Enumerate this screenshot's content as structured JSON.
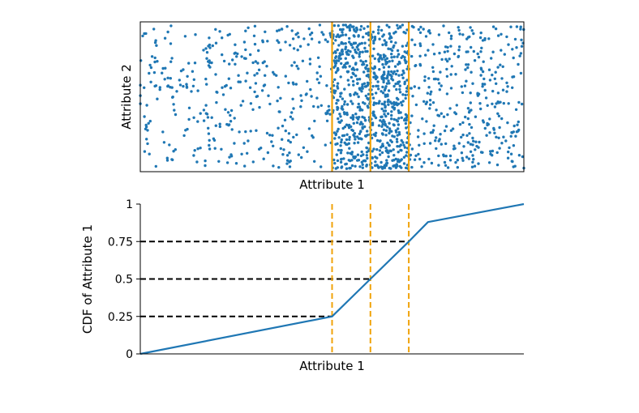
{
  "chart_data": [
    {
      "type": "scatter",
      "xlabel": "Attribute 1",
      "ylabel": "Attribute 2",
      "xlim": [
        0,
        1
      ],
      "ylim": [
        0,
        1
      ],
      "axis_ticks": "none",
      "grid": false,
      "marker_color": "#1f77b4",
      "density_profile": {
        "breaks": [
          0,
          0.5,
          0.6,
          0.7,
          1
        ],
        "cdf_at_breaks": [
          0,
          0.25,
          0.5,
          0.75,
          1
        ],
        "point_count": 1500
      },
      "vertical_lines": [
        {
          "x": 0.5,
          "color": "#f0a30a",
          "style": "solid"
        },
        {
          "x": 0.6,
          "color": "#f0a30a",
          "style": "solid"
        },
        {
          "x": 0.7,
          "color": "#f0a30a",
          "style": "solid"
        }
      ]
    },
    {
      "type": "line",
      "xlabel": "Attribute 1",
      "ylabel": "CDF of Attribute 1",
      "xlim": [
        0,
        1
      ],
      "ylim": [
        0,
        1
      ],
      "grid": false,
      "y_ticks": [
        {
          "value": 0,
          "label": "0"
        },
        {
          "value": 0.25,
          "label": "0.25"
        },
        {
          "value": 0.5,
          "label": "0.5"
        },
        {
          "value": 0.75,
          "label": "0.75"
        },
        {
          "value": 1,
          "label": "1"
        }
      ],
      "series": [
        {
          "color": "#1f77b4",
          "x": [
            0,
            0.5,
            0.6,
            0.7,
            0.75,
            1
          ],
          "y": [
            0,
            0.25,
            0.5,
            0.75,
            0.88,
            1
          ]
        }
      ],
      "horizontal_guides": [
        {
          "y": 0.25,
          "x_end": 0.5,
          "color": "#000000",
          "style": "dashed"
        },
        {
          "y": 0.5,
          "x_end": 0.6,
          "color": "#000000",
          "style": "dashed"
        },
        {
          "y": 0.75,
          "x_end": 0.7,
          "color": "#000000",
          "style": "dashed"
        }
      ],
      "vertical_guides": [
        {
          "x": 0.5,
          "color": "#f0a30a",
          "style": "dashed"
        },
        {
          "x": 0.6,
          "color": "#f0a30a",
          "style": "dashed"
        },
        {
          "x": 0.7,
          "color": "#f0a30a",
          "style": "dashed"
        }
      ]
    }
  ]
}
